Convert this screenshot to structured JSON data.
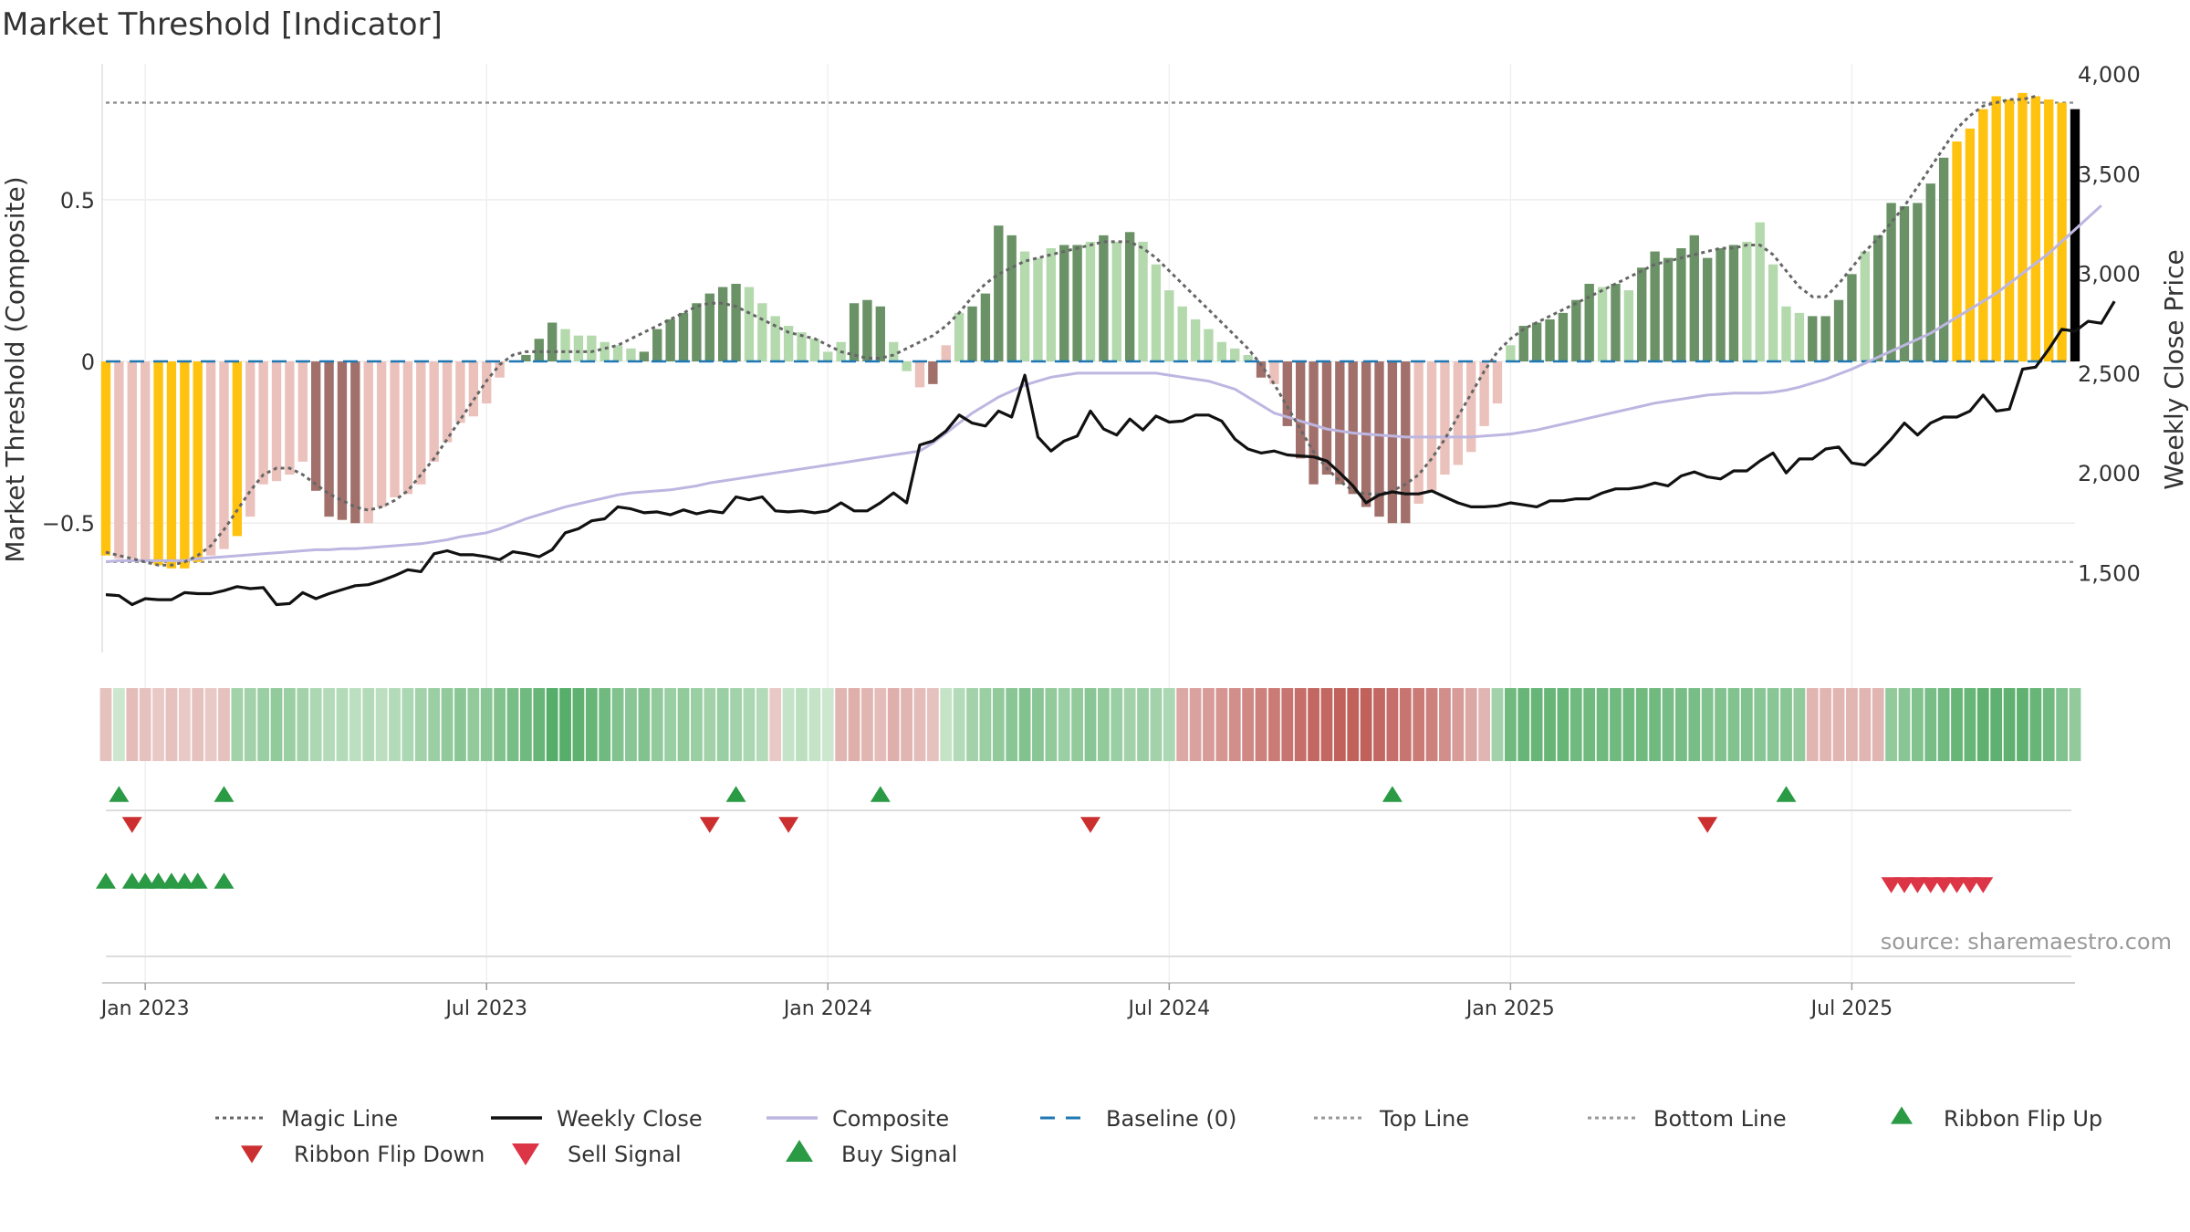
{
  "chart_data": {
    "type": "bar",
    "title": "Market Threshold [Indicator]",
    "source": "source: sharemaestro.com",
    "ylabel_left": "Market Threshold (Composite)",
    "ylabel_right": "Weekly Close Price",
    "ylim_left": [
      -0.9,
      0.92
    ],
    "ylim_right": [
      1100,
      4050
    ],
    "yticks_left": [
      {
        "value": 0.5,
        "label": "0.5"
      },
      {
        "value": 0,
        "label": "0"
      },
      {
        "value": -0.5,
        "label": "−0.5"
      }
    ],
    "yticks_right": [
      {
        "value": 4000,
        "label": "4,000"
      },
      {
        "value": 3500,
        "label": "3,500"
      },
      {
        "value": 3000,
        "label": "3,000"
      },
      {
        "value": 2500,
        "label": "2,500"
      },
      {
        "value": 2000,
        "label": "2,000"
      },
      {
        "value": 1500,
        "label": "1,500"
      }
    ],
    "xticks": [
      {
        "index": 3,
        "label": "Jan 2023"
      },
      {
        "index": 29,
        "label": "Jul 2023"
      },
      {
        "index": 55,
        "label": "Jan 2024"
      },
      {
        "index": 81,
        "label": "Jul 2024"
      },
      {
        "index": 107,
        "label": "Jan 2025"
      },
      {
        "index": 133,
        "label": "Jul 2025"
      }
    ],
    "top_line": 0.8,
    "bottom_line": -0.62,
    "baseline": 0,
    "composite": [
      -0.6,
      -0.61,
      -0.61,
      -0.62,
      -0.63,
      -0.64,
      -0.64,
      -0.62,
      -0.6,
      -0.58,
      -0.54,
      -0.48,
      -0.38,
      -0.37,
      -0.35,
      -0.31,
      -0.4,
      -0.48,
      -0.49,
      -0.5,
      -0.5,
      -0.45,
      -0.42,
      -0.41,
      -0.38,
      -0.31,
      -0.25,
      -0.19,
      -0.17,
      -0.13,
      -0.05,
      0,
      0.02,
      0.07,
      0.12,
      0.1,
      0.08,
      0.08,
      0.06,
      0.05,
      0.04,
      0.03,
      0.1,
      0.13,
      0.15,
      0.18,
      0.21,
      0.23,
      0.24,
      0.23,
      0.18,
      0.14,
      0.11,
      0.09,
      0.07,
      0.03,
      0.06,
      0.18,
      0.19,
      0.17,
      0.06,
      -0.03,
      -0.08,
      -0.07,
      0.05,
      0.15,
      0.17,
      0.21,
      0.42,
      0.39,
      0.34,
      0.32,
      0.35,
      0.36,
      0.36,
      0.37,
      0.39,
      0.37,
      0.4,
      0.37,
      0.3,
      0.22,
      0.17,
      0.13,
      0.1,
      0.06,
      0.04,
      0.02,
      -0.05,
      -0.07,
      -0.2,
      -0.3,
      -0.38,
      -0.35,
      -0.38,
      -0.41,
      -0.45,
      -0.48,
      -0.5,
      -0.5,
      -0.44,
      -0.4,
      -0.35,
      -0.32,
      -0.28,
      -0.2,
      -0.13,
      0.05,
      0.11,
      0.12,
      0.13,
      0.15,
      0.19,
      0.24,
      0.23,
      0.24,
      0.22,
      0.29,
      0.34,
      0.32,
      0.35,
      0.39,
      0.32,
      0.35,
      0.36,
      0.37,
      0.43,
      0.3,
      0.17,
      0.15,
      0.14,
      0.14,
      0.19,
      0.27,
      0.34,
      0.39,
      0.49,
      0.48,
      0.49,
      0.55,
      0.63,
      0.68,
      0.72,
      0.78,
      0.82,
      0.81,
      0.83,
      0.82,
      0.81,
      0.8,
      0.78
    ],
    "bar_colors": [
      "#ffc20e",
      "#ebc1bb",
      "#ebc1bb",
      "#ebc1bb",
      "#ffc20e",
      "#ffc20e",
      "#ffc20e",
      "#ffc20e",
      "#ebc1bb",
      "#ebc1bb",
      "#ffc20e",
      "#ebc1bb",
      "#ebc1bb",
      "#ebc1bb",
      "#ebc1bb",
      "#ebc1bb",
      "#a1706b",
      "#a1706b",
      "#a1706b",
      "#a1706b",
      "#ebc1bb",
      "#ebc1bb",
      "#ebc1bb",
      "#ebc1bb",
      "#ebc1bb",
      "#ebc1bb",
      "#ebc1bb",
      "#ebc1bb",
      "#ebc1bb",
      "#ebc1bb",
      "#ebc1bb",
      "#b4d9ad",
      "#6a9266",
      "#6a9266",
      "#6a9266",
      "#b4d9ad",
      "#b4d9ad",
      "#b4d9ad",
      "#b4d9ad",
      "#b4d9ad",
      "#b4d9ad",
      "#6a9266",
      "#6a9266",
      "#6a9266",
      "#6a9266",
      "#6a9266",
      "#6a9266",
      "#6a9266",
      "#6a9266",
      "#b4d9ad",
      "#b4d9ad",
      "#b4d9ad",
      "#b4d9ad",
      "#b4d9ad",
      "#b4d9ad",
      "#b4d9ad",
      "#b4d9ad",
      "#6a9266",
      "#6a9266",
      "#6a9266",
      "#b4d9ad",
      "#b4d9ad",
      "#ebc1bb",
      "#a1706b",
      "#ebc1bb",
      "#b4d9ad",
      "#6a9266",
      "#6a9266",
      "#6a9266",
      "#6a9266",
      "#b4d9ad",
      "#b4d9ad",
      "#b4d9ad",
      "#6a9266",
      "#6a9266",
      "#b4d9ad",
      "#6a9266",
      "#b4d9ad",
      "#6a9266",
      "#b4d9ad",
      "#b4d9ad",
      "#b4d9ad",
      "#b4d9ad",
      "#b4d9ad",
      "#b4d9ad",
      "#b4d9ad",
      "#b4d9ad",
      "#b4d9ad",
      "#a1706b",
      "#ebc1bb",
      "#a1706b",
      "#a1706b",
      "#a1706b",
      "#a1706b",
      "#a1706b",
      "#a1706b",
      "#a1706b",
      "#a1706b",
      "#a1706b",
      "#a1706b",
      "#ebc1bb",
      "#ebc1bb",
      "#ebc1bb",
      "#ebc1bb",
      "#ebc1bb",
      "#ebc1bb",
      "#ebc1bb",
      "#b4d9ad",
      "#6a9266",
      "#6a9266",
      "#6a9266",
      "#6a9266",
      "#6a9266",
      "#6a9266",
      "#b4d9ad",
      "#6a9266",
      "#b4d9ad",
      "#6a9266",
      "#6a9266",
      "#6a9266",
      "#6a9266",
      "#6a9266",
      "#6a9266",
      "#6a9266",
      "#6a9266",
      "#b4d9ad",
      "#b4d9ad",
      "#b4d9ad",
      "#b4d9ad",
      "#b4d9ad",
      "#6a9266",
      "#6a9266",
      "#6a9266",
      "#6a9266",
      "#b4d9ad",
      "#6a9266",
      "#6a9266",
      "#6a9266",
      "#6a9266",
      "#6a9266",
      "#6a9266",
      "#ffc20e",
      "#ffc20e",
      "#ffc20e",
      "#ffc20e",
      "#ffc20e",
      "#ffc20e",
      "#ffc20e",
      "#ffc20e",
      "#ffc20e"
    ],
    "magic_line": [
      -0.59,
      -0.6,
      -0.61,
      -0.62,
      -0.63,
      -0.63,
      -0.62,
      -0.6,
      -0.57,
      -0.52,
      -0.46,
      -0.4,
      -0.35,
      -0.33,
      -0.33,
      -0.35,
      -0.38,
      -0.41,
      -0.43,
      -0.45,
      -0.46,
      -0.45,
      -0.43,
      -0.4,
      -0.35,
      -0.3,
      -0.24,
      -0.18,
      -0.12,
      -0.06,
      -0.01,
      0.02,
      0.03,
      0.03,
      0.03,
      0.03,
      0.03,
      0.03,
      0.04,
      0.05,
      0.07,
      0.09,
      0.11,
      0.13,
      0.15,
      0.17,
      0.18,
      0.18,
      0.17,
      0.15,
      0.13,
      0.11,
      0.09,
      0.08,
      0.07,
      0.05,
      0.03,
      0.02,
      0.01,
      0.01,
      0.02,
      0.04,
      0.06,
      0.08,
      0.11,
      0.15,
      0.2,
      0.24,
      0.27,
      0.29,
      0.31,
      0.32,
      0.33,
      0.34,
      0.35,
      0.36,
      0.37,
      0.37,
      0.37,
      0.35,
      0.32,
      0.28,
      0.24,
      0.2,
      0.16,
      0.12,
      0.08,
      0.04,
      -0.01,
      -0.07,
      -0.14,
      -0.21,
      -0.28,
      -0.33,
      -0.37,
      -0.4,
      -0.41,
      -0.41,
      -0.4,
      -0.38,
      -0.35,
      -0.3,
      -0.24,
      -0.17,
      -0.1,
      -0.03,
      0.03,
      0.07,
      0.1,
      0.12,
      0.14,
      0.16,
      0.18,
      0.2,
      0.22,
      0.24,
      0.26,
      0.28,
      0.3,
      0.31,
      0.32,
      0.33,
      0.34,
      0.35,
      0.35,
      0.36,
      0.36,
      0.33,
      0.28,
      0.23,
      0.2,
      0.2,
      0.24,
      0.29,
      0.34,
      0.38,
      0.43,
      0.48,
      0.54,
      0.6,
      0.66,
      0.72,
      0.76,
      0.79,
      0.8,
      0.81,
      0.81,
      0.82
    ],
    "series": [
      {
        "name": "Weekly Close",
        "color": "#111111",
        "values": [
          1390,
          1385,
          1340,
          1370,
          1365,
          1365,
          1400,
          1395,
          1395,
          1410,
          1430,
          1420,
          1425,
          1340,
          1345,
          1400,
          1370,
          1395,
          1415,
          1435,
          1440,
          1460,
          1485,
          1515,
          1505,
          1595,
          1610,
          1590,
          1590,
          1580,
          1565,
          1605,
          1595,
          1580,
          1615,
          1700,
          1720,
          1760,
          1770,
          1830,
          1820,
          1800,
          1805,
          1790,
          1815,
          1795,
          1810,
          1800,
          1880,
          1865,
          1880,
          1810,
          1805,
          1810,
          1800,
          1810,
          1850,
          1810,
          1810,
          1850,
          1900,
          1850,
          2140,
          2160,
          2210,
          2290,
          2250,
          2235,
          2310,
          2280,
          2490,
          2180,
          2110,
          2160,
          2185,
          2310,
          2220,
          2190,
          2270,
          2215,
          2285,
          2255,
          2260,
          2290,
          2290,
          2260,
          2170,
          2120,
          2100,
          2110,
          2090,
          2085,
          2080,
          2060,
          2000,
          1935,
          1850,
          1890,
          1905,
          1895,
          1895,
          1910,
          1880,
          1850,
          1830,
          1830,
          1835,
          1850,
          1840,
          1830,
          1860,
          1860,
          1870,
          1870,
          1900,
          1920,
          1920,
          1930,
          1950,
          1935,
          1985,
          2005,
          1980,
          1970,
          2010,
          2010,
          2060,
          2100,
          2000,
          2070,
          2070,
          2120,
          2130,
          2050,
          2040,
          2100,
          2170,
          2250,
          2190,
          2250,
          2280,
          2280,
          2310,
          2390,
          2310,
          2320,
          2520,
          2530,
          2620,
          2720,
          2710,
          2760,
          2750,
          2860
        ]
      },
      {
        "name": "Composite",
        "color": "#bdb6e1",
        "values": [
          1555,
          1560,
          1560,
          1560,
          1560,
          1560,
          1560,
          1570,
          1575,
          1580,
          1585,
          1590,
          1595,
          1600,
          1605,
          1610,
          1615,
          1615,
          1620,
          1620,
          1625,
          1630,
          1635,
          1640,
          1645,
          1655,
          1665,
          1680,
          1690,
          1700,
          1720,
          1745,
          1770,
          1790,
          1810,
          1830,
          1845,
          1860,
          1875,
          1890,
          1900,
          1905,
          1910,
          1915,
          1925,
          1935,
          1950,
          1960,
          1970,
          1980,
          1990,
          2000,
          2010,
          2020,
          2030,
          2040,
          2050,
          2060,
          2070,
          2080,
          2090,
          2100,
          2110,
          2150,
          2200,
          2250,
          2300,
          2340,
          2380,
          2410,
          2440,
          2460,
          2480,
          2490,
          2500,
          2500,
          2500,
          2500,
          2500,
          2500,
          2500,
          2490,
          2480,
          2470,
          2460,
          2440,
          2420,
          2380,
          2340,
          2300,
          2280,
          2260,
          2240,
          2220,
          2210,
          2200,
          2195,
          2190,
          2185,
          2180,
          2180,
          2180,
          2180,
          2180,
          2180,
          2185,
          2190,
          2195,
          2205,
          2215,
          2230,
          2245,
          2260,
          2275,
          2290,
          2305,
          2320,
          2335,
          2350,
          2360,
          2370,
          2380,
          2390,
          2395,
          2400,
          2400,
          2400,
          2405,
          2415,
          2430,
          2450,
          2470,
          2495,
          2520,
          2550,
          2580,
          2610,
          2640,
          2670,
          2700,
          2740,
          2780,
          2820,
          2860,
          2900,
          2950,
          3000,
          3050,
          3100,
          3160,
          3220,
          3280,
          3340
        ]
      }
    ],
    "ribbon": [
      -0.2,
      0.15,
      -0.25,
      -0.2,
      -0.15,
      -0.2,
      -0.15,
      -0.2,
      -0.15,
      -0.2,
      0.4,
      0.4,
      0.45,
      0.5,
      0.45,
      0.4,
      0.35,
      0.3,
      0.3,
      0.25,
      0.3,
      0.25,
      0.3,
      0.35,
      0.4,
      0.45,
      0.5,
      0.55,
      0.5,
      0.55,
      0.6,
      0.65,
      0.7,
      0.75,
      0.85,
      0.85,
      0.8,
      0.75,
      0.7,
      0.6,
      0.55,
      0.6,
      0.5,
      0.45,
      0.5,
      0.45,
      0.4,
      0.45,
      0.4,
      0.35,
      0.3,
      -0.15,
      0.2,
      0.25,
      0.2,
      0.15,
      -0.3,
      -0.35,
      -0.3,
      -0.25,
      -0.35,
      -0.3,
      -0.25,
      -0.2,
      0.2,
      0.3,
      0.4,
      0.45,
      0.5,
      0.55,
      0.6,
      0.55,
      0.5,
      0.45,
      0.5,
      0.55,
      0.5,
      0.45,
      0.4,
      0.45,
      0.4,
      0.35,
      -0.4,
      -0.45,
      -0.5,
      -0.55,
      -0.6,
      -0.65,
      -0.7,
      -0.75,
      -0.8,
      -0.85,
      -0.9,
      -0.9,
      -0.95,
      -0.95,
      -0.95,
      -0.9,
      -0.85,
      -0.8,
      -0.75,
      -0.7,
      -0.6,
      -0.5,
      -0.4,
      -0.3,
      0.4,
      0.7,
      0.75,
      0.75,
      0.75,
      0.75,
      0.7,
      0.7,
      0.7,
      0.7,
      0.7,
      0.7,
      0.7,
      0.65,
      0.65,
      0.65,
      0.6,
      0.6,
      0.6,
      0.6,
      0.55,
      0.55,
      0.55,
      0.5,
      -0.3,
      -0.3,
      -0.3,
      -0.3,
      -0.3,
      -0.3,
      0.5,
      0.55,
      0.6,
      0.65,
      0.7,
      0.75,
      0.75,
      0.8,
      0.8,
      0.8,
      0.8,
      0.75,
      0.7,
      0.6,
      0.5
    ],
    "ribbon_flip_up": [
      1,
      9,
      48,
      59,
      98,
      128
    ],
    "ribbon_flip_down": [
      2,
      46,
      52,
      75,
      122
    ],
    "buy_signals": [
      0,
      2,
      3,
      4,
      5,
      6,
      7,
      9
    ],
    "sell_signals": [
      136,
      137,
      138,
      139,
      140,
      141,
      142,
      143
    ],
    "legend": [
      {
        "label": "Magic Line",
        "marker": "dotted-line",
        "color": "#666666"
      },
      {
        "label": "Weekly Close",
        "marker": "solid-line",
        "color": "#111111"
      },
      {
        "label": "Composite",
        "marker": "solid-line",
        "color": "#bdb6e1"
      },
      {
        "label": "Baseline (0)",
        "marker": "dashed-line",
        "color": "#1f77b4"
      },
      {
        "label": "Top Line",
        "marker": "dotted-line",
        "color": "#999999"
      },
      {
        "label": "Bottom Line",
        "marker": "dotted-line",
        "color": "#999999"
      },
      {
        "label": "Ribbon Flip Up",
        "marker": "triangle-up",
        "color": "#2a9a45"
      },
      {
        "label": "Ribbon Flip Down",
        "marker": "triangle-down",
        "color": "#cc2f2f"
      },
      {
        "label": "Sell Signal",
        "marker": "triangle-down",
        "color": "#dc3545"
      },
      {
        "label": "Buy Signal",
        "marker": "triangle-up",
        "color": "#2a9a45"
      }
    ],
    "legend_placement": "bottom",
    "colors": {
      "extreme": "#ffc20e",
      "bull_strong": "#6a9266",
      "bull_weak": "#b4d9ad",
      "bear_strong": "#a1706b",
      "bear_weak": "#ebc1bb",
      "flip_up": "#2a9a45",
      "flip_down": "#cc2f2f",
      "sell": "#dc3545",
      "buy": "#2a9a45"
    },
    "grid": true
  }
}
